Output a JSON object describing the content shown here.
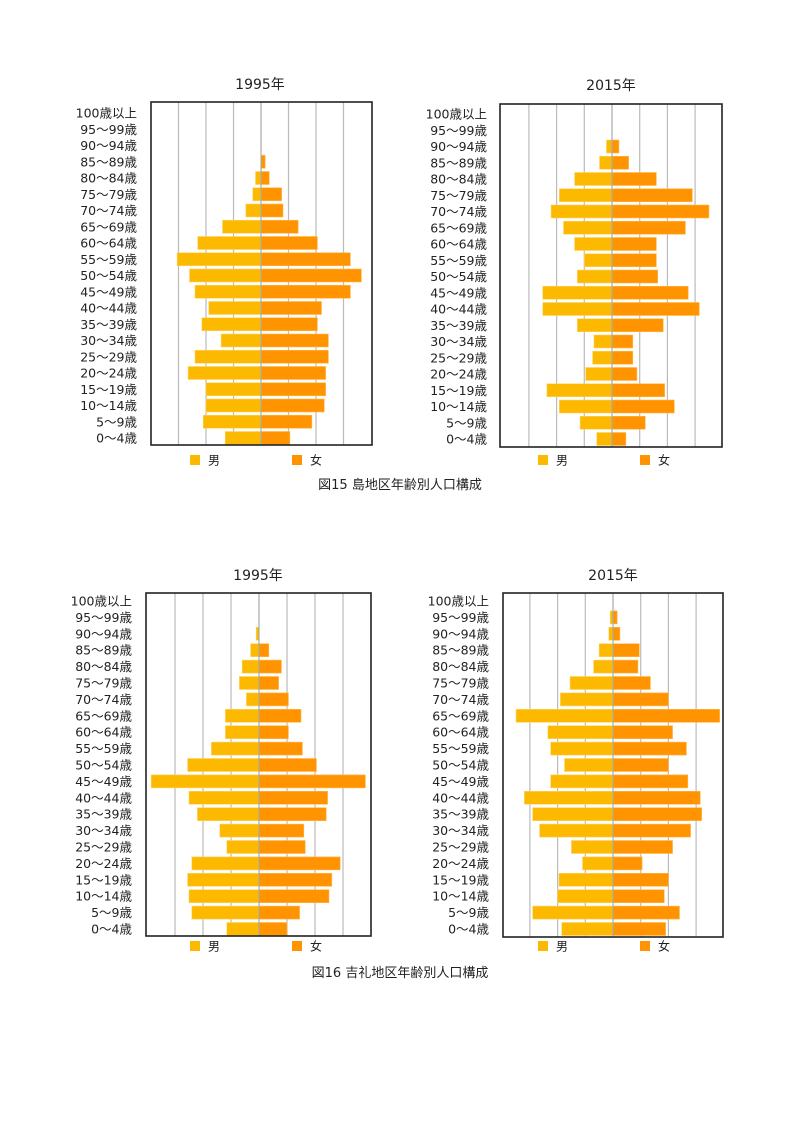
{
  "age_groups": [
    "100歳以上",
    "95～99歳",
    "90～94歳",
    "85～89歳",
    "80～84歳",
    "75～79歳",
    "70～74歳",
    "65～69歳",
    "60～64歳",
    "55～59歳",
    "50～54歳",
    "45～49歳",
    "40～44歳",
    "35～39歳",
    "30～34歳",
    "25～29歳",
    "20～24歳",
    "15～19歳",
    "10～14歳",
    "5～9歳",
    "0～4歳"
  ],
  "legend": {
    "male": "男",
    "female": "女"
  },
  "colors": {
    "male": "#FCB900",
    "female": "#FF9400",
    "grid": "#BBBBBB",
    "frame": "#222222"
  },
  "figures": [
    {
      "caption": "図15 島地区年齢別人口構成"
    },
    {
      "caption": "図16 吉礼地区年齢別人口構成"
    }
  ],
  "chart_data": [
    {
      "type": "bar",
      "orientation": "horizontal-pyramid",
      "figure": "図15 島地区年齢別人口構成",
      "title": "1995年",
      "xlabel": "",
      "ylabel": "",
      "value_unit": "gridline intervals (axis unlabeled)",
      "xlim": [
        -4,
        4
      ],
      "grid": true,
      "legend_position": "bottom",
      "categories": [
        "100歳以上",
        "95～99歳",
        "90～94歳",
        "85～89歳",
        "80～84歳",
        "75～79歳",
        "70～74歳",
        "65～69歳",
        "60～64歳",
        "55～59歳",
        "50～54歳",
        "45～49歳",
        "40～44歳",
        "35～39歳",
        "30～34歳",
        "25～29歳",
        "20～24歳",
        "15～19歳",
        "10～14歳",
        "5～9歳",
        "0～4歳"
      ],
      "series": [
        {
          "name": "男",
          "values": [
            0,
            0,
            0,
            0,
            0.2,
            0.3,
            0.55,
            1.4,
            2.3,
            3.05,
            2.6,
            2.4,
            1.9,
            2.15,
            1.45,
            2.4,
            2.65,
            2.0,
            2.0,
            2.1,
            1.3
          ]
        },
        {
          "name": "女",
          "values": [
            0,
            0,
            0,
            0.15,
            0.3,
            0.75,
            0.8,
            1.35,
            2.05,
            3.25,
            3.65,
            3.25,
            2.2,
            2.05,
            2.45,
            2.45,
            2.35,
            2.35,
            2.3,
            1.85,
            1.05
          ]
        }
      ]
    },
    {
      "type": "bar",
      "orientation": "horizontal-pyramid",
      "figure": "図15 島地区年齢別人口構成",
      "title": "2015年",
      "xlabel": "",
      "ylabel": "",
      "value_unit": "gridline intervals (axis unlabeled)",
      "xlim": [
        -4,
        4
      ],
      "grid": true,
      "legend_position": "bottom",
      "categories": [
        "100歳以上",
        "95～99歳",
        "90～94歳",
        "85～89歳",
        "80～84歳",
        "75～79歳",
        "70～74歳",
        "65～69歳",
        "60～64歳",
        "55～59歳",
        "50～54歳",
        "45～49歳",
        "40～44歳",
        "35～39歳",
        "30～34歳",
        "25～29歳",
        "20～24歳",
        "15～19歳",
        "10～14歳",
        "5～9歳",
        "0～4歳"
      ],
      "series": [
        {
          "name": "男",
          "values": [
            0,
            0,
            0.2,
            0.45,
            1.35,
            1.9,
            2.2,
            1.75,
            1.35,
            1.0,
            1.25,
            2.5,
            2.5,
            1.25,
            0.65,
            0.7,
            0.95,
            2.35,
            1.9,
            1.15,
            0.55
          ]
        },
        {
          "name": "女",
          "values": [
            0,
            0,
            0.25,
            0.6,
            1.6,
            2.9,
            3.5,
            2.65,
            1.6,
            1.6,
            1.65,
            2.75,
            3.15,
            1.85,
            0.75,
            0.75,
            0.9,
            1.9,
            2.25,
            1.2,
            0.5
          ]
        }
      ]
    },
    {
      "type": "bar",
      "orientation": "horizontal-pyramid",
      "figure": "図16 吉礼地区年齢別人口構成",
      "title": "1995年",
      "xlabel": "",
      "ylabel": "",
      "value_unit": "gridline intervals (axis unlabeled)",
      "xlim": [
        -4,
        4
      ],
      "grid": true,
      "legend_position": "bottom",
      "categories": [
        "100歳以上",
        "95～99歳",
        "90～94歳",
        "85～89歳",
        "80～84歳",
        "75～79歳",
        "70～74歳",
        "65～69歳",
        "60～64歳",
        "55～59歳",
        "50～54歳",
        "45～49歳",
        "40～44歳",
        "35～39歳",
        "30～34歳",
        "25～29歳",
        "20～24歳",
        "15～19歳",
        "10～14歳",
        "5～9歳",
        "0～4歳"
      ],
      "series": [
        {
          "name": "男",
          "values": [
            0,
            0,
            0.1,
            0.3,
            0.6,
            0.7,
            0.45,
            1.2,
            1.2,
            1.7,
            2.55,
            3.85,
            2.5,
            2.2,
            1.4,
            1.15,
            2.4,
            2.55,
            2.5,
            2.4,
            1.15
          ]
        },
        {
          "name": "女",
          "values": [
            0,
            0,
            0,
            0.35,
            0.8,
            0.7,
            1.05,
            1.5,
            1.05,
            1.55,
            2.05,
            3.8,
            2.45,
            2.4,
            1.6,
            1.65,
            2.9,
            2.6,
            2.5,
            1.45,
            1.0
          ]
        }
      ]
    },
    {
      "type": "bar",
      "orientation": "horizontal-pyramid",
      "figure": "図16 吉礼地区年齢別人口構成",
      "title": "2015年",
      "xlabel": "",
      "ylabel": "",
      "value_unit": "gridline intervals (axis unlabeled)",
      "xlim": [
        -4,
        4
      ],
      "grid": true,
      "legend_position": "bottom",
      "categories": [
        "100歳以上",
        "95～99歳",
        "90～94歳",
        "85～89歳",
        "80～84歳",
        "75～79歳",
        "70～74歳",
        "65～69歳",
        "60～64歳",
        "55～59歳",
        "50～54歳",
        "45～49歳",
        "40～44歳",
        "35～39歳",
        "30～34歳",
        "25～29歳",
        "20～24歳",
        "15～19歳",
        "10～14歳",
        "5～9歳",
        "0～4歳"
      ],
      "series": [
        {
          "name": "男",
          "values": [
            0,
            0.1,
            0.15,
            0.5,
            0.7,
            1.55,
            1.9,
            3.5,
            2.35,
            2.25,
            1.75,
            2.25,
            3.2,
            2.9,
            2.65,
            1.5,
            1.1,
            1.95,
            2.0,
            2.9,
            1.85
          ]
        },
        {
          "name": "女",
          "values": [
            0,
            0.15,
            0.25,
            0.95,
            0.9,
            1.35,
            2.0,
            3.85,
            2.15,
            2.65,
            2.0,
            2.7,
            3.15,
            3.2,
            2.8,
            2.15,
            1.05,
            2.0,
            1.85,
            2.4,
            1.9
          ]
        }
      ]
    }
  ]
}
